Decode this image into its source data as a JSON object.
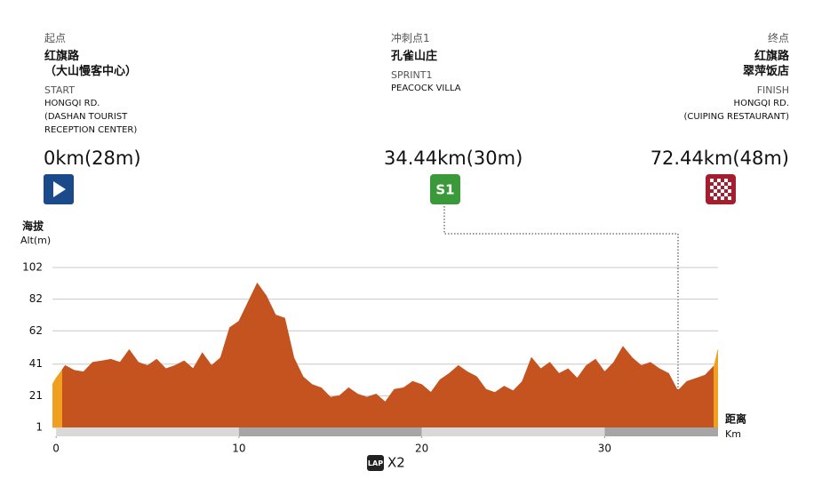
{
  "markers": [
    {
      "label_cn": [
        "起点",
        "红旗路",
        "（大山慢客中心）"
      ],
      "label_en": [
        "START",
        "HONGQI RD.",
        "(DASHAN TOURIST",
        "RECEPTION CENTER)"
      ],
      "distance": "0km(28m)",
      "icon": ""
    },
    {
      "label_cn": [
        "冲刺点1",
        "孔雀山庄"
      ],
      "label_en": [
        "SPRINT1",
        "PEACOCK VILLA"
      ],
      "distance": "34.44km(30m)",
      "icon": "S1"
    },
    {
      "label_cn": [
        "终点",
        "红旗路",
        "翠萍饭店"
      ],
      "label_en": [
        "FINISH",
        "HONGQI RD.",
        "(CUIPING RESTAURANT)"
      ],
      "distance": "72.44km(48m)",
      "icon": ""
    }
  ],
  "chart_data": {
    "type": "area",
    "color": "#c5531f",
    "edge_color": "#f0a01e",
    "y_label": [
      "海拔",
      "Alt(m)"
    ],
    "x_label": [
      "距离",
      "Km"
    ],
    "laps": "X2",
    "lap_icon": "LAP",
    "x": [
      -0.2,
      0,
      0.5,
      1,
      1.5,
      2,
      2.5,
      3,
      3.5,
      4,
      4.5,
      5,
      5.5,
      6,
      6.5,
      7,
      7.5,
      8,
      8.5,
      9,
      9.5,
      10,
      10.5,
      11,
      11.5,
      12,
      12.5,
      13,
      13.5,
      14,
      14.5,
      15,
      15.5,
      16,
      16.5,
      17,
      17.5,
      18,
      18.5,
      19,
      19.5,
      20,
      20.5,
      21,
      21.5,
      22,
      22.5,
      23,
      23.5,
      24,
      24.5,
      25,
      25.5,
      26,
      26.5,
      27,
      27.5,
      28,
      28.5,
      29,
      29.5,
      30,
      30.5,
      31,
      31.5,
      32,
      32.5,
      33,
      33.5,
      34,
      34.5,
      35,
      35.5,
      36,
      36.2
    ],
    "values": [
      28,
      32,
      40,
      37,
      36,
      42,
      43,
      44,
      42,
      50,
      42,
      40,
      44,
      38,
      40,
      43,
      38,
      48,
      40,
      45,
      64,
      68,
      80,
      92,
      84,
      72,
      70,
      45,
      33,
      28,
      26,
      20,
      21,
      26,
      22,
      20,
      22,
      17,
      25,
      26,
      30,
      28,
      23,
      31,
      35,
      40,
      36,
      33,
      25,
      23,
      27,
      24,
      30,
      45,
      38,
      42,
      35,
      38,
      32,
      40,
      44,
      36,
      42,
      52,
      45,
      40,
      42,
      38,
      35,
      24,
      30,
      32,
      34,
      40,
      50
    ],
    "xlim": [
      -0.2,
      36.2
    ],
    "xticks": [
      0,
      10,
      20,
      30
    ],
    "ylim": [
      1,
      111
    ],
    "yticks": [
      1,
      21,
      41,
      62,
      82,
      102
    ],
    "grid": true
  }
}
